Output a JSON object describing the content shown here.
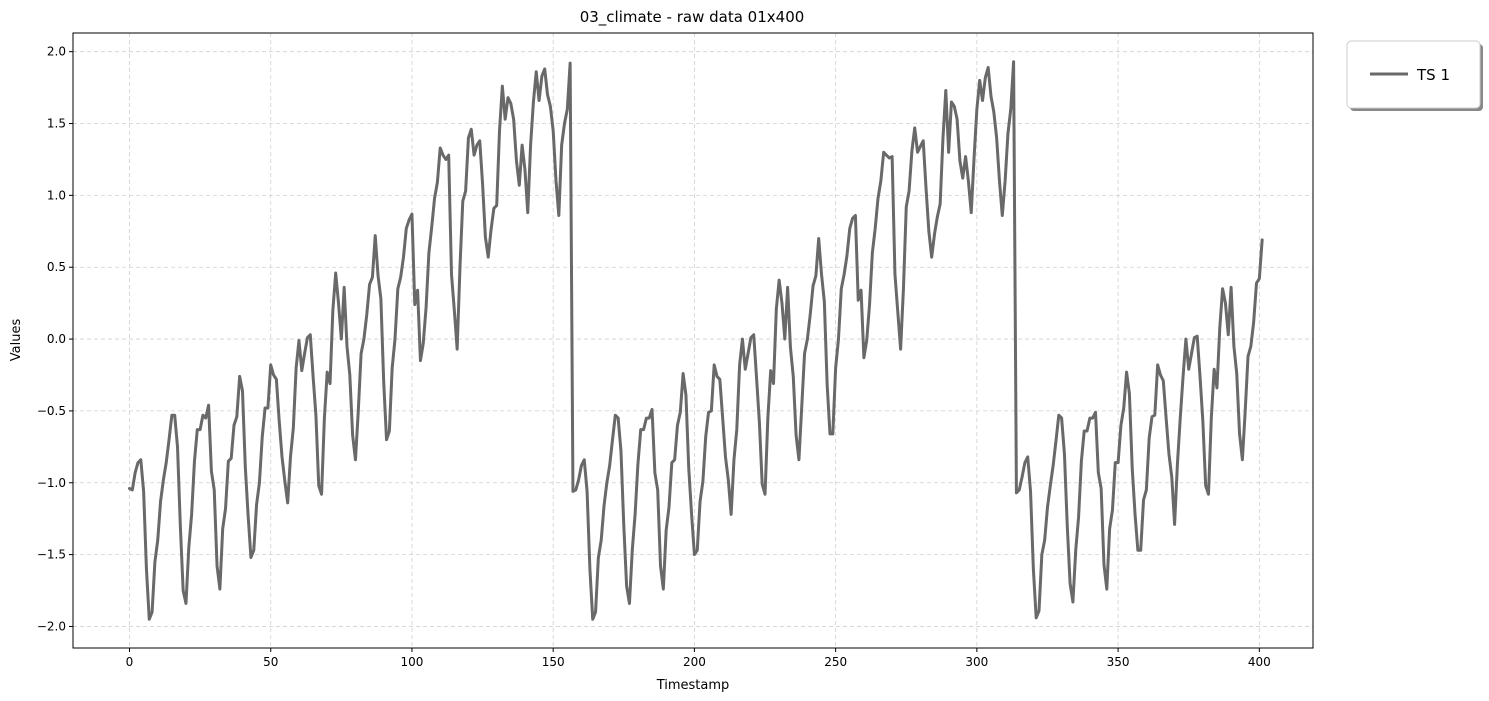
{
  "chart_data": {
    "type": "line",
    "title": "03_climate - raw data 01x400",
    "xlabel": "Timestamp",
    "ylabel": "Values",
    "xlim": [
      -20,
      419
    ],
    "ylim": [
      -2.15,
      2.13
    ],
    "xticks": [
      0,
      50,
      100,
      150,
      200,
      250,
      300,
      350,
      400
    ],
    "xtick_labels": [
      "0",
      "50",
      "100",
      "150",
      "200",
      "250",
      "300",
      "350",
      "400"
    ],
    "yticks": [
      -2.0,
      -1.5,
      -1.0,
      -0.5,
      0.0,
      0.5,
      1.0,
      1.5,
      2.0
    ],
    "ytick_labels": [
      "−2.0",
      "−1.5",
      "−1.0",
      "−0.5",
      "0.0",
      "0.5",
      "1.0",
      "1.5",
      "2.0"
    ],
    "grid": true,
    "legend_position": "outside top-right",
    "series": [
      {
        "name": "TS 1",
        "color": "#696969",
        "x_start": 0,
        "values": [
          -1.04,
          -1.05,
          -0.93,
          -0.86,
          -0.84,
          -1.06,
          -1.6,
          -1.95,
          -1.9,
          -1.55,
          -1.4,
          -1.13,
          -0.98,
          -0.86,
          -0.7,
          -0.53,
          -0.53,
          -0.75,
          -1.3,
          -1.75,
          -1.84,
          -1.45,
          -1.22,
          -0.85,
          -0.63,
          -0.63,
          -0.53,
          -0.55,
          -0.46,
          -0.92,
          -1.05,
          -1.58,
          -1.74,
          -1.32,
          -1.18,
          -0.85,
          -0.83,
          -0.6,
          -0.54,
          -0.26,
          -0.36,
          -0.89,
          -1.23,
          -1.52,
          -1.47,
          -1.15,
          -1.0,
          -0.68,
          -0.48,
          -0.48,
          -0.18,
          -0.25,
          -0.28,
          -0.57,
          -0.82,
          -0.99,
          -1.14,
          -0.82,
          -0.62,
          -0.2,
          -0.01,
          -0.22,
          -0.1,
          0.01,
          0.03,
          -0.26,
          -0.53,
          -1.02,
          -1.08,
          -0.55,
          -0.23,
          -0.31,
          0.2,
          0.46,
          0.25,
          0.0,
          0.36,
          -0.05,
          -0.25,
          -0.67,
          -0.84,
          -0.5,
          -0.1,
          0.0,
          0.17,
          0.38,
          0.43,
          0.72,
          0.44,
          0.28,
          -0.3,
          -0.7,
          -0.64,
          -0.2,
          0.0,
          0.35,
          0.43,
          0.57,
          0.77,
          0.83,
          0.87,
          0.24,
          0.34,
          -0.15,
          -0.03,
          0.22,
          0.6,
          0.78,
          0.98,
          1.09,
          1.33,
          1.28,
          1.25,
          1.28,
          0.45,
          0.2,
          -0.07,
          0.5,
          0.96,
          1.03,
          1.4,
          1.46,
          1.28,
          1.35,
          1.38,
          1.08,
          0.71,
          0.57,
          0.76,
          0.91,
          0.93,
          1.45,
          1.76,
          1.53,
          1.68,
          1.64,
          1.53,
          1.24,
          1.07,
          1.35,
          1.18,
          0.88,
          1.35,
          1.65,
          1.86,
          1.66,
          1.83,
          1.88,
          1.7,
          1.62,
          1.45,
          1.1,
          0.86,
          1.35,
          1.5,
          1.6,
          1.92,
          -1.06,
          -1.05,
          -0.98,
          -0.88,
          -0.84,
          -1.06,
          -1.6,
          -1.95,
          -1.9,
          -1.52,
          -1.4,
          -1.16,
          -1.0,
          -0.88,
          -0.7,
          -0.53,
          -0.55,
          -0.78,
          -1.3,
          -1.72,
          -1.84,
          -1.47,
          -1.22,
          -0.87,
          -0.63,
          -0.63,
          -0.55,
          -0.55,
          -0.49,
          -0.93,
          -1.05,
          -1.58,
          -1.74,
          -1.33,
          -1.17,
          -0.86,
          -0.84,
          -0.6,
          -0.51,
          -0.24,
          -0.39,
          -0.9,
          -1.22,
          -1.5,
          -1.47,
          -1.13,
          -0.99,
          -0.68,
          -0.51,
          -0.5,
          -0.18,
          -0.26,
          -0.28,
          -0.55,
          -0.82,
          -0.98,
          -1.22,
          -0.84,
          -0.63,
          -0.18,
          0.0,
          -0.21,
          -0.1,
          0.01,
          0.03,
          -0.27,
          -0.58,
          -1.01,
          -1.08,
          -0.55,
          -0.22,
          -0.31,
          0.21,
          0.41,
          0.25,
          0.0,
          0.36,
          -0.06,
          -0.26,
          -0.67,
          -0.84,
          -0.47,
          -0.1,
          0.0,
          0.17,
          0.37,
          0.44,
          0.7,
          0.45,
          0.26,
          -0.32,
          -0.66,
          -0.66,
          -0.2,
          0.0,
          0.35,
          0.45,
          0.58,
          0.77,
          0.84,
          0.86,
          0.27,
          0.34,
          -0.13,
          -0.01,
          0.24,
          0.6,
          0.77,
          0.98,
          1.1,
          1.3,
          1.28,
          1.26,
          1.27,
          0.45,
          0.19,
          -0.07,
          0.35,
          0.92,
          1.03,
          1.31,
          1.47,
          1.3,
          1.34,
          1.38,
          1.05,
          0.75,
          0.57,
          0.73,
          0.85,
          0.94,
          1.4,
          1.73,
          1.3,
          1.65,
          1.62,
          1.53,
          1.24,
          1.12,
          1.27,
          1.1,
          0.88,
          1.26,
          1.6,
          1.8,
          1.66,
          1.82,
          1.89,
          1.69,
          1.58,
          1.4,
          1.1,
          0.86,
          1.1,
          1.43,
          1.6,
          1.93,
          -1.07,
          -1.05,
          -0.96,
          -0.86,
          -0.82,
          -1.06,
          -1.6,
          -1.94,
          -1.89,
          -1.5,
          -1.4,
          -1.17,
          -1.02,
          -0.88,
          -0.71,
          -0.53,
          -0.55,
          -0.8,
          -1.3,
          -1.7,
          -1.83,
          -1.47,
          -1.24,
          -0.85,
          -0.64,
          -0.64,
          -0.55,
          -0.55,
          -0.51,
          -0.93,
          -1.04,
          -1.57,
          -1.74,
          -1.32,
          -1.19,
          -0.86,
          -0.86,
          -0.6,
          -0.48,
          -0.23,
          -0.38,
          -0.9,
          -1.22,
          -1.47,
          -1.47,
          -1.12,
          -1.05,
          -0.69,
          -0.54,
          -0.53,
          -0.18,
          -0.25,
          -0.29,
          -0.55,
          -0.8,
          -0.96,
          -1.29,
          -0.87,
          -0.55,
          -0.26,
          0.0,
          -0.21,
          -0.1,
          0.01,
          0.02,
          -0.26,
          -0.57,
          -1.02,
          -1.08,
          -0.55,
          -0.21,
          -0.34,
          0.08,
          0.35,
          0.25,
          0.03,
          0.36,
          -0.05,
          -0.24,
          -0.66,
          -0.84,
          -0.5,
          -0.12,
          -0.05,
          0.12,
          0.39,
          0.42,
          0.69
        ]
      }
    ]
  }
}
